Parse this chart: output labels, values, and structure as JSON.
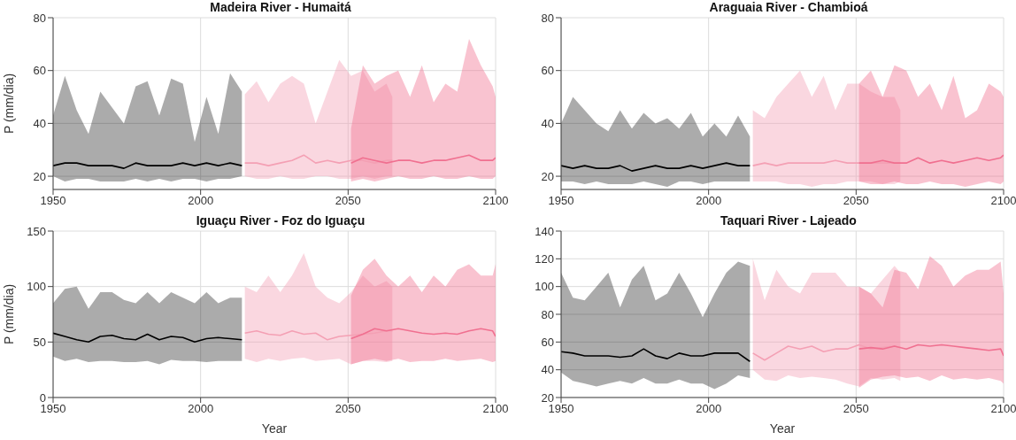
{
  "chart_data": [
    {
      "type": "line",
      "title": "Madeira River - Humaitá",
      "ylabel": "P (mm/dia)",
      "xlim": [
        1950,
        2100
      ],
      "xticks": [
        1950,
        2000,
        2050,
        2100
      ],
      "ylim": [
        15,
        80
      ],
      "yticks": [
        20,
        40,
        60,
        80
      ],
      "grid": true,
      "legend": false,
      "series": [
        {
          "color": "#000000",
          "x": [
            1950,
            1954,
            1958,
            1962,
            1966,
            1970,
            1974,
            1978,
            1982,
            1986,
            1990,
            1994,
            1998,
            2002,
            2006,
            2010,
            2014
          ],
          "values": [
            24,
            25,
            25,
            24,
            24,
            24,
            23,
            25,
            24,
            24,
            24,
            25,
            24,
            25,
            24,
            25,
            24
          ],
          "lower": [
            20,
            18,
            19,
            19,
            18,
            18,
            18,
            19,
            18,
            19,
            18,
            19,
            19,
            18,
            19,
            19,
            20
          ],
          "upper": [
            43,
            58,
            45,
            36,
            52,
            46,
            40,
            54,
            56,
            43,
            57,
            55,
            33,
            50,
            36,
            59,
            52
          ]
        },
        {
          "color": "#f4a0b4",
          "x": [
            2015,
            2019,
            2023,
            2027,
            2031,
            2035,
            2039,
            2043,
            2047,
            2051,
            2055,
            2059,
            2063,
            2065
          ],
          "values": [
            25,
            25,
            24,
            25,
            26,
            28,
            25,
            26,
            25,
            26,
            26,
            25,
            26,
            26
          ],
          "lower": [
            20,
            19,
            19,
            20,
            19,
            19,
            20,
            20,
            19,
            19,
            20,
            19,
            20,
            20
          ],
          "upper": [
            51,
            56,
            48,
            55,
            58,
            55,
            40,
            52,
            64,
            58,
            60,
            52,
            55,
            50
          ]
        },
        {
          "color": "#f07090",
          "x": [
            2051,
            2055,
            2059,
            2063,
            2067,
            2071,
            2075,
            2079,
            2083,
            2087,
            2091,
            2095,
            2099,
            2100
          ],
          "values": [
            25,
            27,
            26,
            25,
            26,
            26,
            25,
            26,
            26,
            27,
            28,
            26,
            26,
            27
          ],
          "lower": [
            18,
            19,
            18,
            19,
            20,
            19,
            19,
            20,
            19,
            19,
            20,
            19,
            19,
            20
          ],
          "upper": [
            38,
            62,
            55,
            58,
            60,
            50,
            62,
            48,
            55,
            52,
            72,
            62,
            54,
            50
          ]
        }
      ]
    },
    {
      "type": "line",
      "title": "Araguaia River - Chambioá",
      "xlim": [
        1950,
        2100
      ],
      "xticks": [
        1950,
        2000,
        2050,
        2100
      ],
      "ylim": [
        15,
        80
      ],
      "yticks": [
        20,
        40,
        60,
        80
      ],
      "grid": true,
      "legend": false,
      "series": [
        {
          "color": "#000000",
          "x": [
            1950,
            1954,
            1958,
            1962,
            1966,
            1970,
            1974,
            1978,
            1982,
            1986,
            1990,
            1994,
            1998,
            2002,
            2006,
            2010,
            2014
          ],
          "values": [
            24,
            23,
            24,
            23,
            23,
            24,
            22,
            23,
            24,
            23,
            23,
            24,
            23,
            24,
            25,
            24,
            24
          ],
          "lower": [
            18,
            18,
            17,
            18,
            17,
            17,
            17,
            18,
            17,
            16,
            18,
            18,
            17,
            18,
            18,
            18,
            18
          ],
          "upper": [
            40,
            50,
            45,
            40,
            37,
            45,
            38,
            44,
            40,
            42,
            38,
            44,
            35,
            40,
            35,
            43,
            35
          ]
        },
        {
          "color": "#f4a0b4",
          "x": [
            2015,
            2019,
            2023,
            2027,
            2031,
            2035,
            2039,
            2043,
            2047,
            2051,
            2055,
            2059,
            2063,
            2065
          ],
          "values": [
            24,
            25,
            24,
            25,
            25,
            25,
            25,
            26,
            25,
            25,
            25,
            25,
            25,
            25
          ],
          "lower": [
            18,
            18,
            18,
            17,
            17,
            16,
            17,
            17,
            18,
            18,
            18,
            17,
            17,
            18
          ],
          "upper": [
            45,
            42,
            50,
            55,
            60,
            50,
            58,
            45,
            55,
            55,
            52,
            50,
            50,
            45
          ]
        },
        {
          "color": "#f07090",
          "x": [
            2051,
            2055,
            2059,
            2063,
            2067,
            2071,
            2075,
            2079,
            2083,
            2087,
            2091,
            2095,
            2099,
            2100
          ],
          "values": [
            25,
            25,
            26,
            25,
            25,
            27,
            25,
            26,
            25,
            26,
            27,
            26,
            27,
            28
          ],
          "lower": [
            18,
            17,
            17,
            18,
            17,
            17,
            18,
            17,
            17,
            16,
            17,
            18,
            17,
            18
          ],
          "upper": [
            55,
            60,
            50,
            62,
            60,
            50,
            55,
            45,
            58,
            42,
            45,
            55,
            52,
            50
          ]
        }
      ]
    },
    {
      "type": "line",
      "title": "Iguaçu River - Foz do Iguaçu",
      "xlabel": "Year",
      "ylabel": "P (mm/dia)",
      "xlim": [
        1950,
        2100
      ],
      "xticks": [
        1950,
        2000,
        2050,
        2100
      ],
      "ylim": [
        0,
        150
      ],
      "yticks": [
        0,
        50,
        100,
        150
      ],
      "grid": true,
      "legend": false,
      "series": [
        {
          "color": "#000000",
          "x": [
            1950,
            1954,
            1958,
            1962,
            1966,
            1970,
            1974,
            1978,
            1982,
            1986,
            1990,
            1994,
            1998,
            2002,
            2006,
            2010,
            2014
          ],
          "values": [
            58,
            55,
            52,
            50,
            55,
            56,
            53,
            52,
            57,
            52,
            55,
            54,
            50,
            53,
            54,
            53,
            52
          ],
          "lower": [
            37,
            33,
            35,
            32,
            33,
            33,
            32,
            32,
            33,
            30,
            34,
            33,
            33,
            32,
            33,
            33,
            33
          ],
          "upper": [
            85,
            98,
            100,
            80,
            95,
            95,
            88,
            85,
            95,
            85,
            95,
            90,
            85,
            95,
            85,
            90,
            90
          ]
        },
        {
          "color": "#f4a0b4",
          "x": [
            2015,
            2019,
            2023,
            2027,
            2031,
            2035,
            2039,
            2043,
            2047,
            2051,
            2055,
            2059,
            2063,
            2065
          ],
          "values": [
            58,
            60,
            57,
            56,
            60,
            57,
            58,
            52,
            55,
            56,
            57,
            58,
            60,
            60
          ],
          "lower": [
            35,
            32,
            35,
            33,
            35,
            36,
            33,
            34,
            35,
            30,
            33,
            33,
            32,
            33
          ],
          "upper": [
            100,
            95,
            110,
            95,
            110,
            130,
            100,
            90,
            85,
            95,
            110,
            100,
            105,
            100
          ]
        },
        {
          "color": "#f07090",
          "x": [
            2051,
            2055,
            2059,
            2063,
            2067,
            2071,
            2075,
            2079,
            2083,
            2087,
            2091,
            2095,
            2099,
            2100
          ],
          "values": [
            53,
            57,
            62,
            60,
            62,
            60,
            58,
            57,
            58,
            57,
            60,
            62,
            60,
            55
          ],
          "lower": [
            30,
            33,
            35,
            33,
            35,
            32,
            33,
            33,
            35,
            33,
            34,
            35,
            32,
            33
          ],
          "upper": [
            92,
            115,
            125,
            110,
            100,
            110,
            95,
            110,
            100,
            115,
            120,
            110,
            110,
            120
          ]
        }
      ]
    },
    {
      "type": "line",
      "title": "Taquari River - Lajeado",
      "xlabel": "Year",
      "xlim": [
        1950,
        2100
      ],
      "xticks": [
        1950,
        2000,
        2050,
        2100
      ],
      "ylim": [
        20,
        140
      ],
      "yticks": [
        20,
        40,
        60,
        80,
        100,
        120,
        140
      ],
      "grid": true,
      "legend": false,
      "series": [
        {
          "color": "#000000",
          "x": [
            1950,
            1954,
            1958,
            1962,
            1966,
            1970,
            1974,
            1978,
            1982,
            1986,
            1990,
            1994,
            1998,
            2002,
            2006,
            2010,
            2014
          ],
          "values": [
            53,
            52,
            50,
            50,
            50,
            49,
            50,
            55,
            50,
            48,
            52,
            50,
            50,
            52,
            52,
            52,
            46
          ],
          "lower": [
            38,
            32,
            30,
            28,
            30,
            32,
            30,
            34,
            30,
            30,
            33,
            30,
            30,
            26,
            30,
            36,
            34
          ],
          "upper": [
            110,
            92,
            90,
            100,
            110,
            85,
            105,
            115,
            90,
            95,
            110,
            95,
            78,
            95,
            110,
            118,
            115
          ]
        },
        {
          "color": "#f4a0b4",
          "x": [
            2015,
            2019,
            2023,
            2027,
            2031,
            2035,
            2039,
            2043,
            2047,
            2051,
            2055,
            2059,
            2063,
            2065
          ],
          "values": [
            52,
            47,
            52,
            57,
            55,
            57,
            53,
            55,
            55,
            58,
            55,
            56,
            57,
            56
          ],
          "lower": [
            40,
            33,
            32,
            36,
            34,
            35,
            34,
            33,
            30,
            28,
            34,
            33,
            34,
            32
          ],
          "upper": [
            120,
            90,
            112,
            100,
            95,
            110,
            110,
            110,
            100,
            100,
            95,
            105,
            115,
            110
          ]
        },
        {
          "color": "#f07090",
          "x": [
            2051,
            2055,
            2059,
            2063,
            2067,
            2071,
            2075,
            2079,
            2083,
            2087,
            2091,
            2095,
            2099,
            2100
          ],
          "values": [
            55,
            56,
            55,
            57,
            55,
            58,
            57,
            58,
            57,
            56,
            55,
            54,
            55,
            50
          ],
          "lower": [
            27,
            33,
            35,
            36,
            34,
            35,
            32,
            36,
            33,
            34,
            33,
            34,
            32,
            30
          ],
          "upper": [
            100,
            95,
            85,
            112,
            110,
            98,
            122,
            115,
            100,
            108,
            112,
            112,
            118,
            95
          ]
        }
      ]
    }
  ]
}
